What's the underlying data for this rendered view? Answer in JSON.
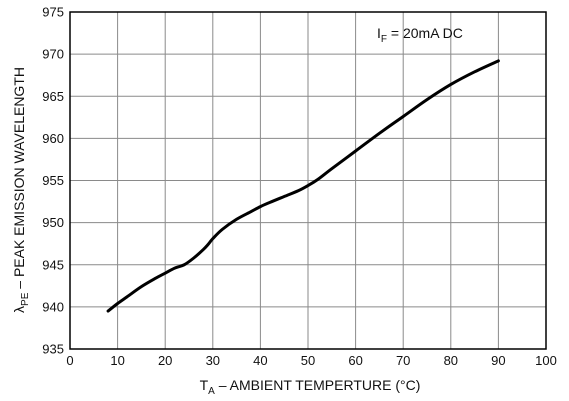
{
  "chart_data": {
    "type": "line",
    "xlabel": {
      "main": "T",
      "sub": "A",
      "rest": " – AMBIENT TEMPERTURE (°C)"
    },
    "ylabel": {
      "main": "λ",
      "sub": "PE",
      "rest": " – PEAK EMISSION WAVELENGTH"
    },
    "annotation": {
      "main": "I",
      "sub": "F",
      "rest": " = 20mA DC"
    },
    "xlim": [
      0,
      100
    ],
    "ylim": [
      935,
      975
    ],
    "xticks": [
      0,
      10,
      20,
      30,
      40,
      50,
      60,
      70,
      80,
      90,
      100
    ],
    "yticks": [
      935,
      940,
      945,
      950,
      955,
      960,
      965,
      970,
      975
    ],
    "grid": true,
    "series": [
      {
        "x": [
          8,
          10,
          12,
          15,
          18,
          20,
          22,
          24,
          26,
          28,
          29,
          30,
          32,
          35,
          38,
          40,
          42,
          45,
          48,
          50,
          52,
          55,
          60,
          65,
          70,
          75,
          80,
          85,
          90
        ],
        "y": [
          939.5,
          940.4,
          941.2,
          942.4,
          943.4,
          944.0,
          944.6,
          945.0,
          945.8,
          946.8,
          947.4,
          948.1,
          949.2,
          950.4,
          951.3,
          951.9,
          952.4,
          953.1,
          953.8,
          954.4,
          955.1,
          956.4,
          958.5,
          960.6,
          962.6,
          964.6,
          966.4,
          967.9,
          969.2
        ]
      }
    ]
  }
}
